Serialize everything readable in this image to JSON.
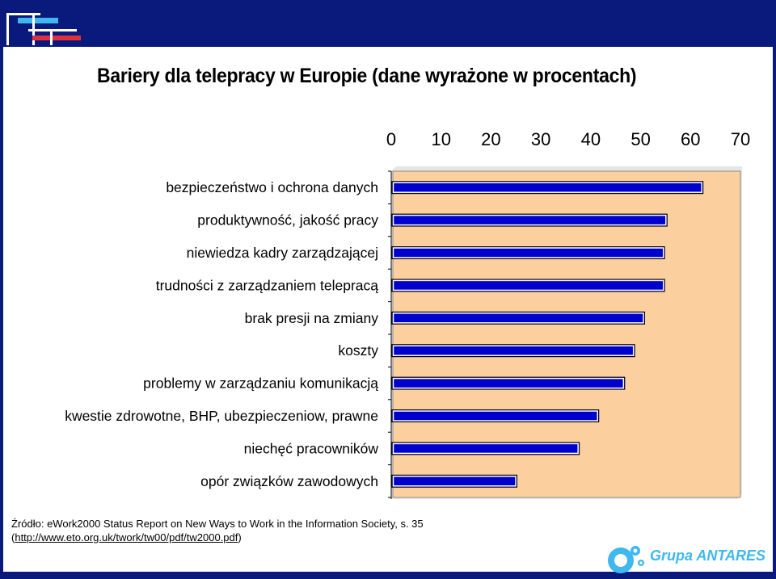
{
  "title": "Bariery dla telepracy w Europie (dane wyrażone w procentach)",
  "source": {
    "line1": "Źródło: eWork2000 Status Report on New Ways to Work in the Information Society, s. 35",
    "open_paren": "(",
    "link": "http://www.eto.org.uk/twork/tw00/pdf/tw2000.pdf",
    "close_paren": ")"
  },
  "brand": {
    "name": "Grupa ANTARES"
  },
  "colors": {
    "background": "#0a1a7c",
    "plot_area": "#fbcf9e",
    "bar": "#0000cc",
    "logo_blue": "#3fb8f0",
    "logo_red": "#e0303a"
  },
  "chart_data": {
    "type": "bar",
    "orientation": "horizontal",
    "title": "Bariery dla telepracy w Europie (dane wyrażone w procentach)",
    "categories": [
      "bezpieczeństwo i ochrona danych",
      "produktywność, jakość pracy",
      "niewiedza kadry zarządzającej",
      "trudności z zarządzaniem telepracą",
      "brak presji na zmiany",
      "koszty",
      "problemy w zarządzaniu komunikacją",
      "kwestie zdrowotne, BHP, ubezpieczeniow, prawne",
      "niechęć pracowników",
      "opór związków zawodowych"
    ],
    "values": [
      62.5,
      55.3,
      54.8,
      54.8,
      50.8,
      48.8,
      46.8,
      41.6,
      37.7,
      25.2
    ],
    "xlim": [
      0,
      70
    ],
    "xticks": [
      "0",
      "10",
      "20",
      "30",
      "40",
      "50",
      "60",
      "70"
    ],
    "xaxis_position": "top",
    "grid": false,
    "legend": "none"
  }
}
